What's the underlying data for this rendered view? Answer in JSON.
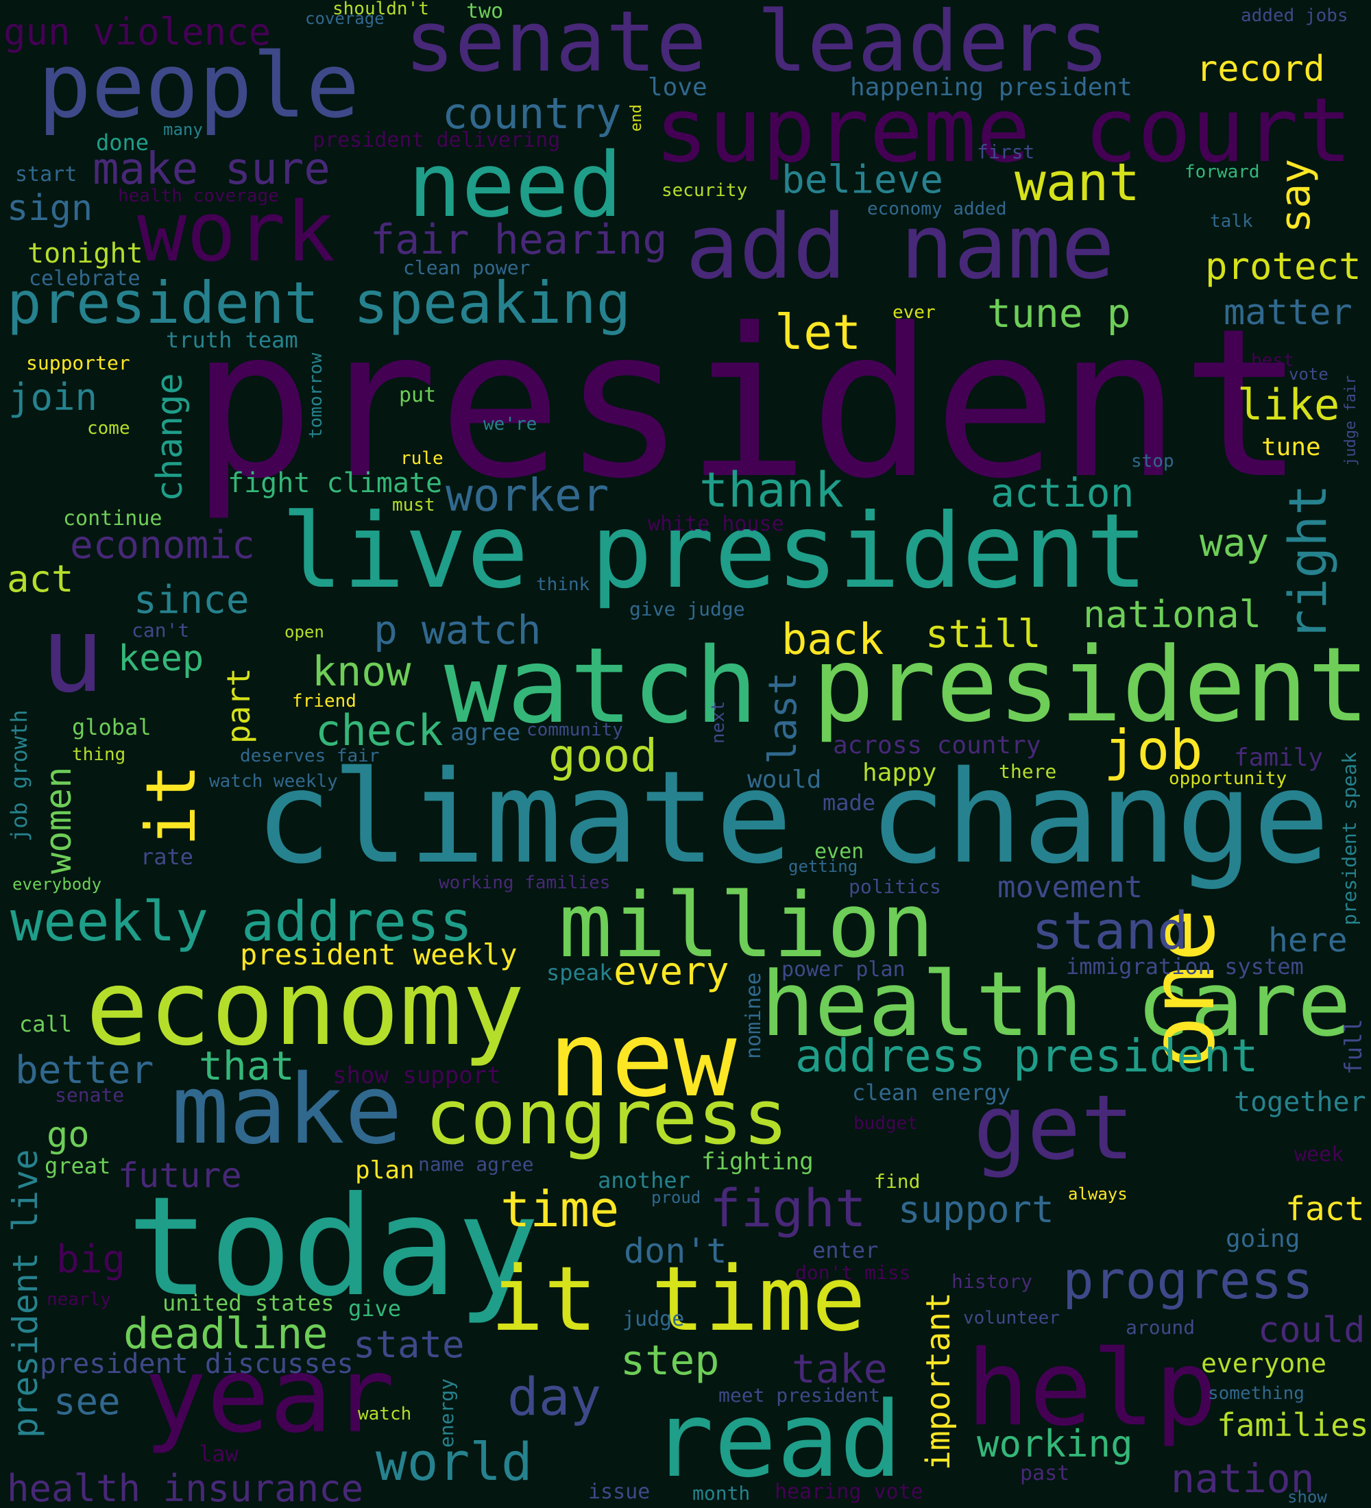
{
  "colors": {
    "background": "#031610",
    "palette": [
      "#440154",
      "#482878",
      "#3e4989",
      "#31688e",
      "#26828e",
      "#1f9e89",
      "#35b779",
      "#6ece58",
      "#b5de2b",
      "#fde725"
    ]
  },
  "words": [
    {
      "text": "president",
      "color": "#440154"
    },
    {
      "text": "climate change",
      "color": "#26828e"
    },
    {
      "text": "live president",
      "color": "#1f9e89"
    },
    {
      "text": "watch",
      "color": "#35b779"
    },
    {
      "text": "president",
      "color": "#6ece58"
    },
    {
      "text": "today",
      "color": "#1f9e89"
    },
    {
      "text": "senate leaders",
      "color": "#482878"
    },
    {
      "text": "supreme court",
      "color": "#440154"
    },
    {
      "text": "people",
      "color": "#3e4989"
    },
    {
      "text": "need",
      "color": "#1f9e89"
    },
    {
      "text": "add name",
      "color": "#482878"
    },
    {
      "text": "work",
      "color": "#440154"
    },
    {
      "text": "economy",
      "color": "#b5de2b"
    },
    {
      "text": "million",
      "color": "#6ece58"
    },
    {
      "text": "health care",
      "color": "#6ece58"
    },
    {
      "text": "new",
      "color": "#fde725"
    },
    {
      "text": "make",
      "color": "#31688e"
    },
    {
      "text": "congress",
      "color": "#b5de2b"
    },
    {
      "text": "get",
      "color": "#482878"
    },
    {
      "text": "one",
      "color": "#fde725"
    },
    {
      "text": "year",
      "color": "#440154"
    },
    {
      "text": "it time",
      "color": "#d6e21a"
    },
    {
      "text": "read",
      "color": "#1f9e89"
    },
    {
      "text": "help",
      "color": "#440154"
    },
    {
      "text": "u",
      "color": "#482878"
    },
    {
      "text": "it",
      "color": "#fde725"
    },
    {
      "text": "president speaking",
      "color": "#26828e"
    },
    {
      "text": "weekly address",
      "color": "#1f9e89"
    },
    {
      "text": "fair hearing",
      "color": "#482878"
    },
    {
      "text": "make sure",
      "color": "#482878"
    },
    {
      "text": "gun violence",
      "color": "#440154"
    },
    {
      "text": "country",
      "color": "#31688e"
    },
    {
      "text": "believe",
      "color": "#26828e"
    },
    {
      "text": "want",
      "color": "#d6e21a"
    },
    {
      "text": "say",
      "color": "#fde725"
    },
    {
      "text": "protect",
      "color": "#d6e21a"
    },
    {
      "text": "record",
      "color": "#fde725"
    },
    {
      "text": "matter",
      "color": "#31688e"
    },
    {
      "text": "tune p",
      "color": "#6ece58"
    },
    {
      "text": "let",
      "color": "#fde725"
    },
    {
      "text": "like",
      "color": "#d6e21a"
    },
    {
      "text": "tune",
      "color": "#fde725"
    },
    {
      "text": "thank",
      "color": "#1f9e89"
    },
    {
      "text": "action",
      "color": "#1f9e89"
    },
    {
      "text": "worker",
      "color": "#31688e"
    },
    {
      "text": "right",
      "color": "#26828e"
    },
    {
      "text": "way",
      "color": "#6ece58"
    },
    {
      "text": "national",
      "color": "#6ece58"
    },
    {
      "text": "still",
      "color": "#d6e21a"
    },
    {
      "text": "back",
      "color": "#fde725"
    },
    {
      "text": "p watch",
      "color": "#31688e"
    },
    {
      "text": "know",
      "color": "#6ece58"
    },
    {
      "text": "check",
      "color": "#35b779"
    },
    {
      "text": "good",
      "color": "#b5de2b"
    },
    {
      "text": "job",
      "color": "#fde725"
    },
    {
      "text": "last",
      "color": "#31688e"
    },
    {
      "text": "across country",
      "color": "#482878"
    },
    {
      "text": "family",
      "color": "#482878"
    },
    {
      "text": "happy",
      "color": "#b5de2b"
    },
    {
      "text": "would",
      "color": "#31688e"
    },
    {
      "text": "stand",
      "color": "#3e4989"
    },
    {
      "text": "movement",
      "color": "#3e4989"
    },
    {
      "text": "here",
      "color": "#31688e"
    },
    {
      "text": "every",
      "color": "#fde725"
    },
    {
      "text": "president weekly",
      "color": "#fde725"
    },
    {
      "text": "address president",
      "color": "#1f9e89"
    },
    {
      "text": "better",
      "color": "#31688e"
    },
    {
      "text": "that",
      "color": "#35b779"
    },
    {
      "text": "progress",
      "color": "#3e4989"
    },
    {
      "text": "time",
      "color": "#fde725"
    },
    {
      "text": "fight",
      "color": "#482878"
    },
    {
      "text": "support",
      "color": "#31688e"
    },
    {
      "text": "fact",
      "color": "#fde725"
    },
    {
      "text": "together",
      "color": "#26828e"
    },
    {
      "text": "could",
      "color": "#482878"
    },
    {
      "text": "everyone",
      "color": "#b5de2b"
    },
    {
      "text": "families",
      "color": "#b5de2b"
    },
    {
      "text": "working",
      "color": "#35b779"
    },
    {
      "text": "nation",
      "color": "#482878"
    },
    {
      "text": "take",
      "color": "#482878"
    },
    {
      "text": "day",
      "color": "#3e4989"
    },
    {
      "text": "step",
      "color": "#6ece58"
    },
    {
      "text": "world",
      "color": "#26828e"
    },
    {
      "text": "deadline",
      "color": "#6ece58"
    },
    {
      "text": "state",
      "color": "#3e4989"
    },
    {
      "text": "see",
      "color": "#31688e"
    },
    {
      "text": "big",
      "color": "#440154"
    },
    {
      "text": "future",
      "color": "#482878"
    },
    {
      "text": "go",
      "color": "#6ece58"
    },
    {
      "text": "don't",
      "color": "#31688e"
    },
    {
      "text": "important",
      "color": "#fde725"
    },
    {
      "text": "health insurance",
      "color": "#482878"
    },
    {
      "text": "president discusses",
      "color": "#3e4989"
    },
    {
      "text": "president live",
      "color": "#26828e"
    },
    {
      "text": "women",
      "color": "#6ece58"
    },
    {
      "text": "job growth",
      "color": "#26828e"
    },
    {
      "text": "economic",
      "color": "#482878"
    },
    {
      "text": "since",
      "color": "#26828e"
    },
    {
      "text": "keep",
      "color": "#35b779"
    },
    {
      "text": "act",
      "color": "#b5de2b"
    },
    {
      "text": "join",
      "color": "#26828e"
    },
    {
      "text": "change",
      "color": "#1f9e89"
    },
    {
      "text": "part",
      "color": "#d6e21a"
    },
    {
      "text": "sign",
      "color": "#31688e"
    },
    {
      "text": "tonight",
      "color": "#b5de2b"
    },
    {
      "text": "fight climate",
      "color": "#35b779"
    },
    {
      "text": "love",
      "color": "#31688e"
    },
    {
      "text": "happening president",
      "color": "#31688e"
    },
    {
      "text": "two",
      "color": "#6ece58"
    },
    {
      "text": "shouldn't",
      "color": "#b5de2b"
    },
    {
      "text": "coverage",
      "color": "#31688e"
    },
    {
      "text": "added jobs",
      "color": "#3e4989"
    },
    {
      "text": "done",
      "color": "#1f9e89"
    },
    {
      "text": "many",
      "color": "#26828e"
    },
    {
      "text": "end",
      "color": "#d6e21a"
    },
    {
      "text": "president delivering",
      "color": "#440154"
    },
    {
      "text": "start",
      "color": "#31688e"
    },
    {
      "text": "health coverage",
      "color": "#440154"
    },
    {
      "text": "security",
      "color": "#b5de2b"
    },
    {
      "text": "first",
      "color": "#3e4989"
    },
    {
      "text": "forward",
      "color": "#35b779"
    },
    {
      "text": "economy added",
      "color": "#31688e"
    },
    {
      "text": "talk",
      "color": "#31688e"
    },
    {
      "text": "celebrate",
      "color": "#31688e"
    },
    {
      "text": "clean power",
      "color": "#31688e"
    },
    {
      "text": "truth team",
      "color": "#26828e"
    },
    {
      "text": "supporter",
      "color": "#fde725"
    },
    {
      "text": "tomorrow",
      "color": "#26828e"
    },
    {
      "text": "put",
      "color": "#6ece58"
    },
    {
      "text": "we're",
      "color": "#26828e"
    },
    {
      "text": "come",
      "color": "#b5de2b"
    },
    {
      "text": "rule",
      "color": "#fde725"
    },
    {
      "text": "must",
      "color": "#b5de2b"
    },
    {
      "text": "ever",
      "color": "#d6e21a"
    },
    {
      "text": "best",
      "color": "#440154"
    },
    {
      "text": "vote",
      "color": "#3e4989"
    },
    {
      "text": "judge fair",
      "color": "#3e4989"
    },
    {
      "text": "stop",
      "color": "#31688e"
    },
    {
      "text": "continue",
      "color": "#6ece58"
    },
    {
      "text": "white house",
      "color": "#440154"
    },
    {
      "text": "think",
      "color": "#31688e"
    },
    {
      "text": "give judge",
      "color": "#31688e"
    },
    {
      "text": "can't",
      "color": "#3e4989"
    },
    {
      "text": "open",
      "color": "#b5de2b"
    },
    {
      "text": "friend",
      "color": "#fde725"
    },
    {
      "text": "global",
      "color": "#6ece58"
    },
    {
      "text": "thing",
      "color": "#b5de2b"
    },
    {
      "text": "deserves fair",
      "color": "#31688e"
    },
    {
      "text": "watch weekly",
      "color": "#31688e"
    },
    {
      "text": "agree",
      "color": "#31688e"
    },
    {
      "text": "community",
      "color": "#3e4989"
    },
    {
      "text": "next",
      "color": "#3e4989"
    },
    {
      "text": "made",
      "color": "#3e4989"
    },
    {
      "text": "there",
      "color": "#b5de2b"
    },
    {
      "text": "opportunity",
      "color": "#d6e21a"
    },
    {
      "text": "president speak",
      "color": "#26828e"
    },
    {
      "text": "rate",
      "color": "#3e4989"
    },
    {
      "text": "everybody",
      "color": "#6ece58"
    },
    {
      "text": "even",
      "color": "#6ece58"
    },
    {
      "text": "getting",
      "color": "#31688e"
    },
    {
      "text": "working families",
      "color": "#482878"
    },
    {
      "text": "politics",
      "color": "#3e4989"
    },
    {
      "text": "power plan",
      "color": "#3e4989"
    },
    {
      "text": "speak",
      "color": "#26828e"
    },
    {
      "text": "immigration system",
      "color": "#3e4989"
    },
    {
      "text": "call",
      "color": "#6ece58"
    },
    {
      "text": "nominee",
      "color": "#31688e"
    },
    {
      "text": "show support",
      "color": "#440154"
    },
    {
      "text": "full",
      "color": "#3e4989"
    },
    {
      "text": "senate",
      "color": "#482878"
    },
    {
      "text": "clean energy",
      "color": "#31688e"
    },
    {
      "text": "budget",
      "color": "#440154"
    },
    {
      "text": "great",
      "color": "#6ece58"
    },
    {
      "text": "plan",
      "color": "#fde725"
    },
    {
      "text": "name agree",
      "color": "#3e4989"
    },
    {
      "text": "fighting",
      "color": "#6ece58"
    },
    {
      "text": "another",
      "color": "#26828e"
    },
    {
      "text": "find",
      "color": "#b5de2b"
    },
    {
      "text": "week",
      "color": "#440154"
    },
    {
      "text": "always",
      "color": "#fde725"
    },
    {
      "text": "proud",
      "color": "#31688e"
    },
    {
      "text": "going",
      "color": "#31688e"
    },
    {
      "text": "enter",
      "color": "#3e4989"
    },
    {
      "text": "don't miss",
      "color": "#440154"
    },
    {
      "text": "history",
      "color": "#482878"
    },
    {
      "text": "nearly",
      "color": "#440154"
    },
    {
      "text": "united states",
      "color": "#6ece58"
    },
    {
      "text": "give",
      "color": "#35b779"
    },
    {
      "text": "judge",
      "color": "#31688e"
    },
    {
      "text": "volunteer",
      "color": "#3e4989"
    },
    {
      "text": "around",
      "color": "#3e4989"
    },
    {
      "text": "meet president",
      "color": "#3e4989"
    },
    {
      "text": "something",
      "color": "#31688e"
    },
    {
      "text": "watch",
      "color": "#b5de2b"
    },
    {
      "text": "energy",
      "color": "#26828e"
    },
    {
      "text": "law",
      "color": "#440154"
    },
    {
      "text": "past",
      "color": "#482878"
    },
    {
      "text": "issue",
      "color": "#3e4989"
    },
    {
      "text": "month",
      "color": "#26828e"
    },
    {
      "text": "hearing vote",
      "color": "#440154"
    },
    {
      "text": "show",
      "color": "#31688e"
    }
  ]
}
